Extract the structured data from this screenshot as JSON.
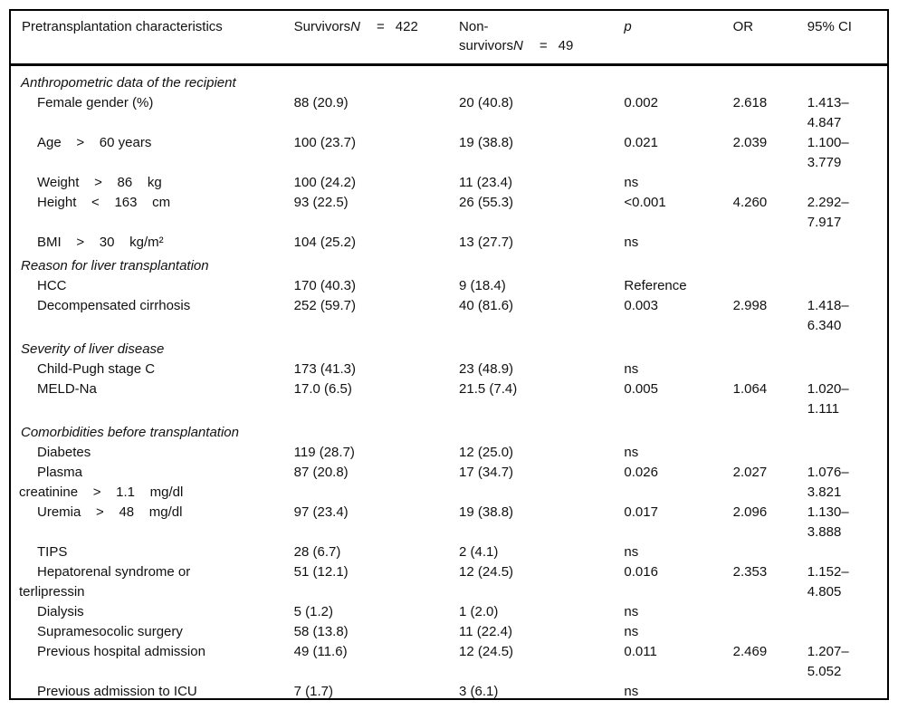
{
  "page": {
    "background": "#ffffff",
    "text_color": "#111111",
    "rule_color": "#000000"
  },
  "header": {
    "characteristics": "Pretransplantation characteristics",
    "survivors": {
      "label": "Survivors",
      "n": "N",
      "equals": "=",
      "count": "422"
    },
    "non_survivors": {
      "line1": "Non-",
      "label2": "survivors",
      "n": "N",
      "equals": "=",
      "count": "49"
    },
    "p": "p",
    "or": "OR",
    "ci": "95% CI"
  },
  "sections": [
    {
      "title": "Anthropometric data of the recipient",
      "rows": [
        {
          "label": "Female gender (%)",
          "survivors": "88 (20.9)",
          "non_survivors": "20 (40.8)",
          "p": "0.002",
          "or": "2.618",
          "ci": "1.413–\n4.847"
        },
        {
          "label": "Age    >    60 years",
          "survivors": "100 (23.7)",
          "non_survivors": "19 (38.8)",
          "p": "0.021",
          "or": "2.039",
          "ci": "1.100–\n3.779"
        },
        {
          "label": "Weight    >    86    kg",
          "survivors": "100 (24.2)",
          "non_survivors": "11 (23.4)",
          "p": "ns",
          "or": "",
          "ci": ""
        },
        {
          "label": "Height    <    163    cm",
          "survivors": "93 (22.5)",
          "non_survivors": "26 (55.3)",
          "p": "<0.001",
          "or": "4.260",
          "ci": "2.292–\n7.917"
        },
        {
          "label": "BMI    >    30    kg/m²",
          "survivors": "104 (25.2)",
          "non_survivors": "13 (27.7)",
          "p": "ns",
          "or": "",
          "ci": ""
        }
      ]
    },
    {
      "title": "Reason for liver transplantation",
      "rows": [
        {
          "label": "HCC",
          "survivors": "170 (40.3)",
          "non_survivors": "9 (18.4)",
          "p": "Reference",
          "or": "",
          "ci": ""
        },
        {
          "label": "Decompensated cirrhosis",
          "survivors": "252 (59.7)",
          "non_survivors": "40 (81.6)",
          "p": "0.003",
          "or": "2.998",
          "ci": "1.418–\n6.340"
        }
      ]
    },
    {
      "title": "Severity of liver disease",
      "rows": [
        {
          "label": "Child-Pugh stage C",
          "survivors": "173 (41.3)",
          "non_survivors": "23 (48.9)",
          "p": "ns",
          "or": "",
          "ci": ""
        },
        {
          "label": "MELD-Na",
          "survivors": "17.0 (6.5)",
          "non_survivors": "21.5 (7.4)",
          "p": "0.005",
          "or": "1.064",
          "ci": "1.020–\n1.111"
        }
      ]
    },
    {
      "title": "Comorbidities before transplantation",
      "rows": [
        {
          "label": "Diabetes",
          "survivors": "119 (28.7)",
          "non_survivors": "12 (25.0)",
          "p": "ns",
          "or": "",
          "ci": ""
        },
        {
          "label": "Plasma\ncreatinine    >    1.1    mg/dl",
          "survivors": "87 (20.8)",
          "non_survivors": "17 (34.7)",
          "p": "0.026",
          "or": "2.027",
          "ci": "1.076–\n3.821"
        },
        {
          "label": "Uremia    >    48    mg/dl",
          "survivors": "97 (23.4)",
          "non_survivors": "19 (38.8)",
          "p": "0.017",
          "or": "2.096",
          "ci": "1.130–\n3.888"
        },
        {
          "label": "TIPS",
          "survivors": "28 (6.7)",
          "non_survivors": "2 (4.1)",
          "p": "ns",
          "or": "",
          "ci": ""
        },
        {
          "label": "Hepatorenal syndrome or\nterlipressin",
          "survivors": "51 (12.1)",
          "non_survivors": "12 (24.5)",
          "p": "0.016",
          "or": "2.353",
          "ci": "1.152–\n4.805"
        },
        {
          "label": "Dialysis",
          "survivors": "5 (1.2)",
          "non_survivors": "1 (2.0)",
          "p": "ns",
          "or": "",
          "ci": ""
        },
        {
          "label": "Supramesocolic surgery",
          "survivors": "58 (13.8)",
          "non_survivors": "11 (22.4)",
          "p": "ns",
          "or": "",
          "ci": ""
        },
        {
          "label": "Previous hospital admission",
          "survivors": "49 (11.6)",
          "non_survivors": "12 (24.5)",
          "p": "0.011",
          "or": "2.469",
          "ci": "1.207–\n5.052"
        },
        {
          "label": "Previous admission to ICU",
          "survivors": "7 (1.7)",
          "non_survivors": "3 (6.1)",
          "p": "ns",
          "or": "",
          "ci": ""
        }
      ]
    }
  ]
}
